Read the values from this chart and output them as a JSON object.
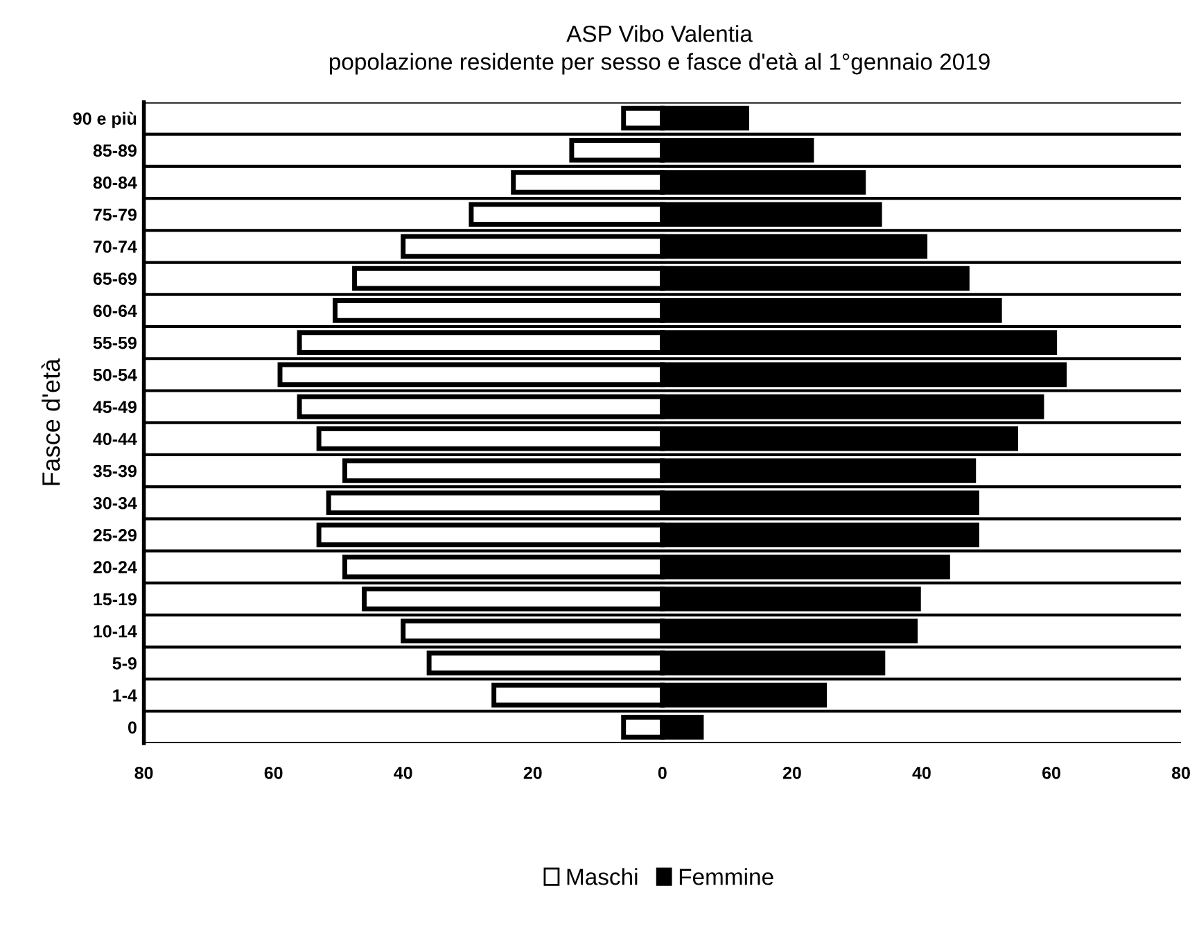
{
  "chart_data": {
    "type": "bar",
    "orientation": "horizontal",
    "title": "ASP Vibo Valentia",
    "subtitle": "popolazione residente per sesso e fasce d'età al 1°gennaio 2019",
    "ylabel": "Fasce d'età",
    "categories": [
      "90 e più",
      "85-89",
      "80-84",
      "75-79",
      "70-74",
      "65-69",
      "60-64",
      "55-59",
      "50-54",
      "45-49",
      "40-44",
      "35-39",
      "30-34",
      "25-29",
      "20-24",
      "15-19",
      "10-14",
      "5-9",
      "1-4",
      "0"
    ],
    "series": [
      {
        "name": "Maschi",
        "color": "#ffffff",
        "values": [
          -6,
          -14,
          -23,
          -29.5,
          -40,
          -47.5,
          -50.5,
          -56,
          -59,
          -56,
          -53,
          -49,
          -51.5,
          -53,
          -49,
          -46,
          -40,
          -36,
          -26,
          -6
        ]
      },
      {
        "name": "Femmine",
        "color": "#000000",
        "values": [
          13,
          23,
          31,
          33.5,
          40.5,
          47,
          52,
          60.5,
          62,
          58.5,
          54.5,
          48,
          48.5,
          48.5,
          44,
          39.5,
          39,
          34,
          25,
          6
        ]
      }
    ],
    "xlim": [
      -80,
      80
    ],
    "xticks": [
      {
        "value": -80,
        "label": "80"
      },
      {
        "value": -60,
        "label": "60"
      },
      {
        "value": -40,
        "label": "40"
      },
      {
        "value": -20,
        "label": "20"
      },
      0,
      20,
      40,
      60,
      80
    ],
    "stacked": true,
    "grid": "y",
    "legend": "bottom"
  }
}
